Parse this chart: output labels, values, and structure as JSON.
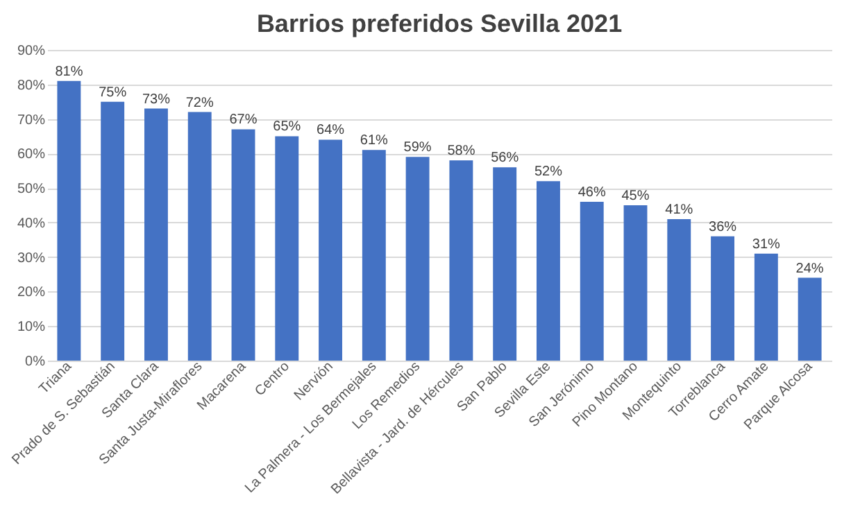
{
  "chart_data": {
    "type": "bar",
    "title": "Barrios preferidos Sevilla 2021",
    "categories": [
      "Triana",
      "Prado de S. Sebastián",
      "Santa Clara",
      "Santa Justa-Miraflores",
      "Macarena",
      "Centro",
      "Nervión",
      "La Palmera - Los Bermejales",
      "Los Remedios",
      "Bellavista - Jard. de Hércules",
      "San Pablo",
      "Sevilla Este",
      "San Jerónimo",
      "Pino Montano",
      "Montequinto",
      "Torreblanca",
      "Cerro Amate",
      "Parque Alcosa"
    ],
    "values": [
      81,
      75,
      73,
      72,
      67,
      65,
      64,
      61,
      59,
      58,
      56,
      52,
      46,
      45,
      41,
      36,
      31,
      24
    ],
    "value_labels": [
      "81%",
      "75%",
      "73%",
      "72%",
      "67%",
      "65%",
      "64%",
      "61%",
      "59%",
      "58%",
      "56%",
      "52%",
      "46%",
      "45%",
      "41%",
      "36%",
      "31%",
      "24%"
    ],
    "color": "#4472c4",
    "ylim": [
      0,
      90
    ],
    "yticks": [
      {
        "value": 0,
        "label": "0%"
      },
      {
        "value": 10,
        "label": "10%"
      },
      {
        "value": 20,
        "label": "20%"
      },
      {
        "value": 30,
        "label": "30%"
      },
      {
        "value": 40,
        "label": "40%"
      },
      {
        "value": 50,
        "label": "50%"
      },
      {
        "value": 60,
        "label": "60%"
      },
      {
        "value": 70,
        "label": "70%"
      },
      {
        "value": 80,
        "label": "80%"
      },
      {
        "value": 90,
        "label": "90%"
      }
    ],
    "grid": "y"
  }
}
